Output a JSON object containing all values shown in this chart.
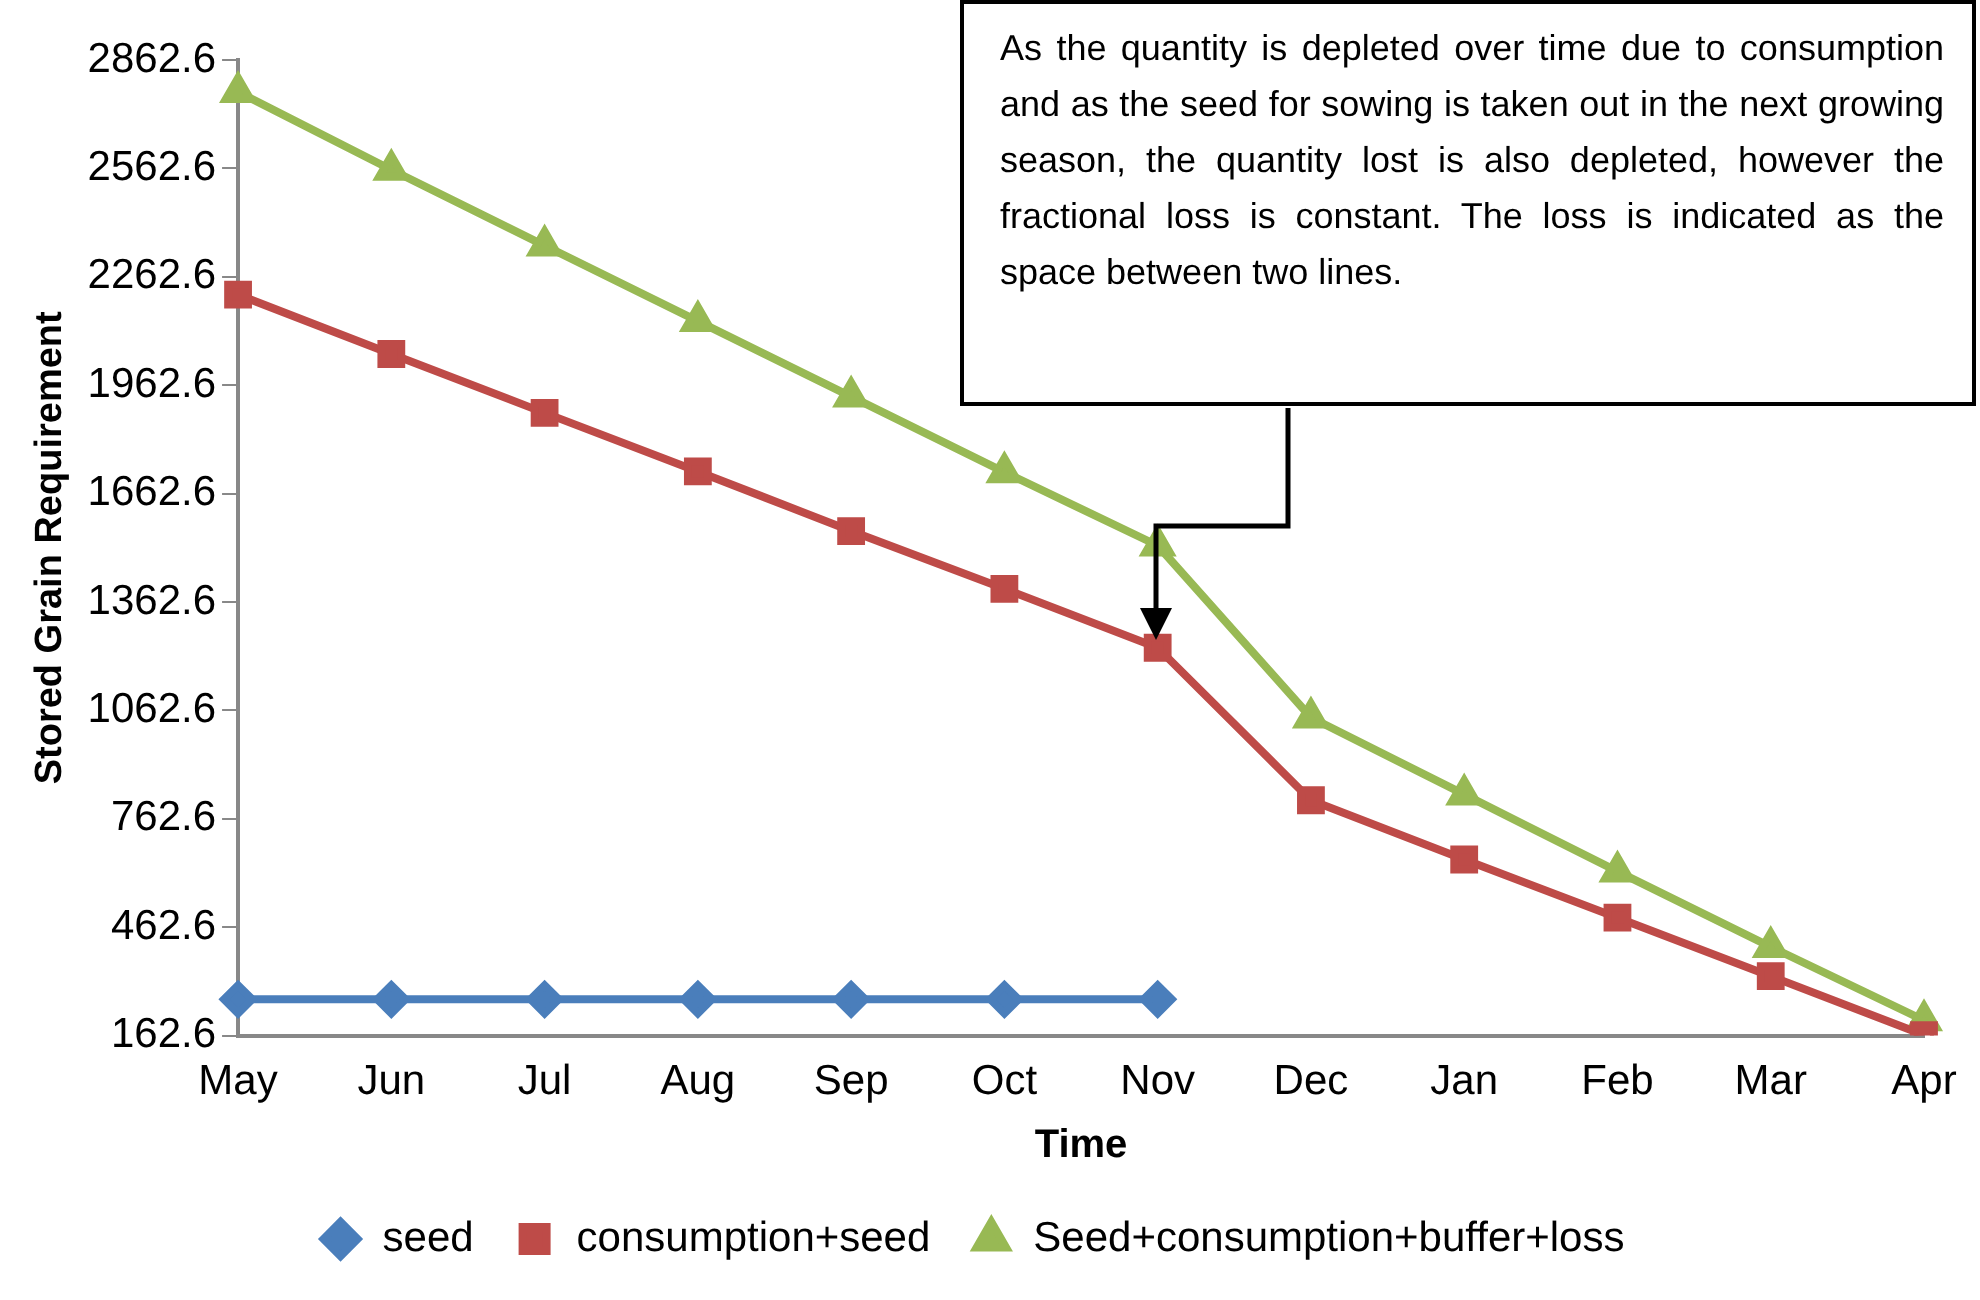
{
  "chart_data": {
    "type": "line",
    "xlabel": "Time",
    "ylabel": "Stored Grain Requirement",
    "categories": [
      "May",
      "Jun",
      "Jul",
      "Aug",
      "Sep",
      "Oct",
      "Nov",
      "Dec",
      "Jan",
      "Feb",
      "Mar",
      "Apr"
    ],
    "series": [
      {
        "name": "seed",
        "color": "#4a7ebb",
        "marker": "diamond",
        "values": [
          263,
          263,
          263,
          263,
          263,
          263,
          263,
          null,
          null,
          null,
          null,
          null
        ]
      },
      {
        "name": "consumption+seed",
        "color": "#be4b48",
        "marker": "square",
        "values": [
          2213,
          2049,
          1886,
          1724,
          1559,
          1399,
          1236,
          814,
          650,
          489,
          327,
          164
        ]
      },
      {
        "name": "Seed+consumption+buffer+loss",
        "color": "#98b954",
        "marker": "triangle",
        "values": [
          2774,
          2559,
          2349,
          2140,
          1931,
          1722,
          1519,
          1043,
          830,
          617,
          408,
          205
        ]
      }
    ],
    "ylim": [
      162.6,
      2862.6
    ],
    "yticks": [
      162.6,
      462.6,
      762.6,
      1062.6,
      1362.6,
      1662.6,
      1962.6,
      2262.6,
      2562.6,
      2862.6
    ],
    "grid": false,
    "legend": "bottom",
    "line_style": "solid",
    "annotations": [
      "As the quantity is depleted over time due to consumption and as the seed for sowing is taken out in the next growing season, the quantity lost is also depleted, however the fractional loss is constant. The loss is indicated as the space between two lines."
    ]
  }
}
